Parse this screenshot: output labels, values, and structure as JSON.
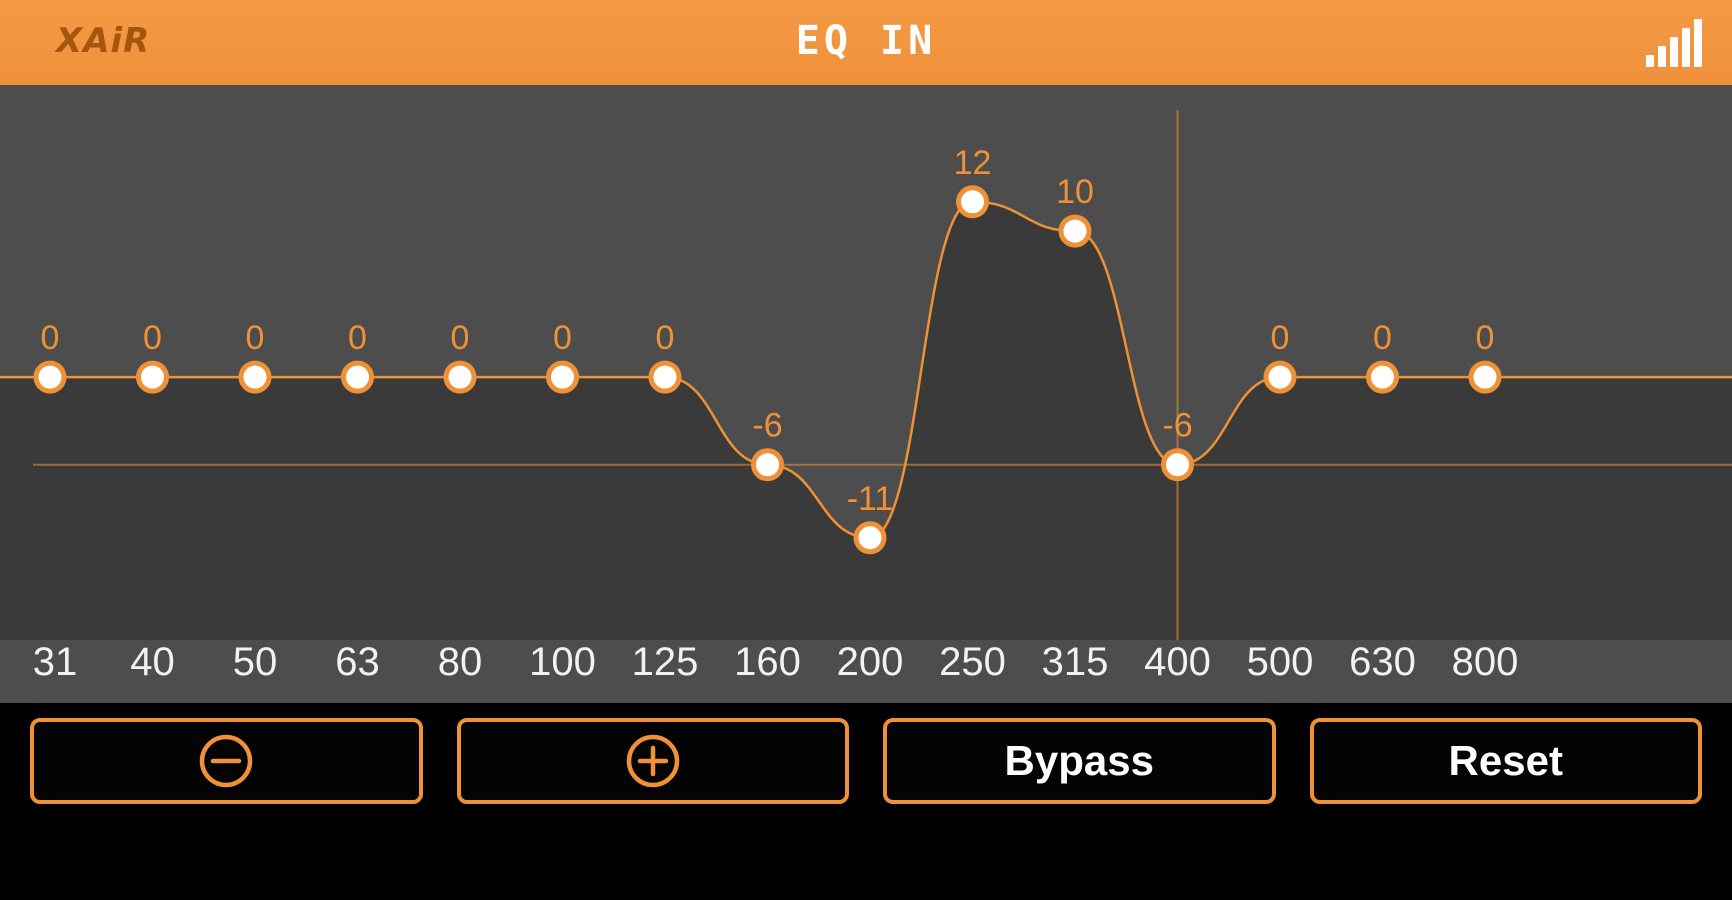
{
  "header": {
    "logo": "XAiR",
    "title": "EQ IN",
    "signal_icon": "signal-bars-icon"
  },
  "chart_data": {
    "type": "line",
    "title": "EQ IN",
    "categories": [
      "31",
      "40",
      "50",
      "63",
      "80",
      "100",
      "125",
      "160",
      "200",
      "250",
      "315",
      "400",
      "500",
      "630",
      "800"
    ],
    "values": [
      0,
      0,
      0,
      0,
      0,
      0,
      0,
      -6,
      -11,
      12,
      10,
      -6,
      0,
      0,
      0
    ],
    "ylim": [
      -18,
      20
    ],
    "grid": false,
    "legend": "none",
    "point_labels_visible": true,
    "selected": {
      "freq": "400",
      "gain": -6
    }
  },
  "buttons": {
    "decrease_icon": "minus-circle-icon",
    "increase_icon": "plus-circle-icon",
    "bypass_label": "Bypass",
    "reset_label": "Reset"
  },
  "colors": {
    "accent": "#EF9136",
    "header_bg": "#F0913C",
    "chart_bg": "#4D4D4D",
    "curve_fill": "#3A3A3A",
    "point_fill": "#FFFFFF",
    "footer_bg": "#000000",
    "label_text": "#F2F2F2",
    "title_text": "#FFFFFF"
  }
}
